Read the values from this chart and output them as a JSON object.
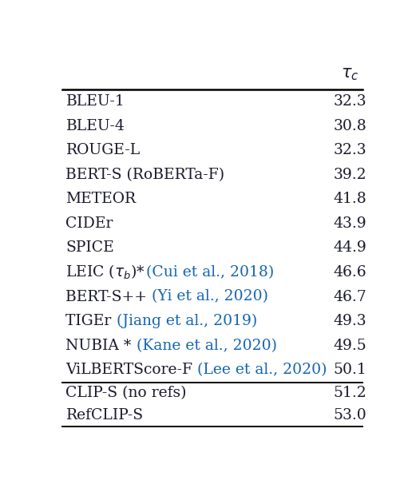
{
  "rows_top": [
    {
      "black": "BLEU-1",
      "blue": "",
      "value": "32.3"
    },
    {
      "black": "BLEU-4",
      "blue": "",
      "value": "30.8"
    },
    {
      "black": "ROUGE-L",
      "blue": "",
      "value": "32.3"
    },
    {
      "black": "BERT-S (RoBERTa-F)",
      "blue": "",
      "value": "39.2"
    },
    {
      "black": "METEOR",
      "blue": "",
      "value": "41.8"
    },
    {
      "black": "CIDEr",
      "blue": "",
      "value": "43.9"
    },
    {
      "black": "SPICE",
      "blue": "",
      "value": "44.9"
    },
    {
      "black": "LEIC ($\\tau_b$)* ",
      "blue": "(Cui et al., 2018)",
      "value": "46.6"
    },
    {
      "black": "BERT-S++ ",
      "blue": "(Yi et al., 2020)",
      "value": "46.7"
    },
    {
      "black": "TIGEr ",
      "blue": "(Jiang et al., 2019)",
      "value": "49.3"
    },
    {
      "black": "NUBIA * ",
      "blue": "(Kane et al., 2020)",
      "value": "49.5"
    },
    {
      "black": "ViLBERTScore-F ",
      "blue": "(Lee et al., 2020)",
      "value": "50.1"
    }
  ],
  "rows_bottom": [
    {
      "black": "CLIP-S (no refs)",
      "blue": "",
      "value": "51.2"
    },
    {
      "black": "RefCLIP-S",
      "blue": "",
      "value": "53.0"
    }
  ],
  "blue_color": "#1464b4",
  "black_color": "#1a1a2e",
  "bg_color": "#ffffff",
  "font_size": 13.5,
  "fig_width": 5.16,
  "fig_height": 6.16,
  "dpi": 100
}
